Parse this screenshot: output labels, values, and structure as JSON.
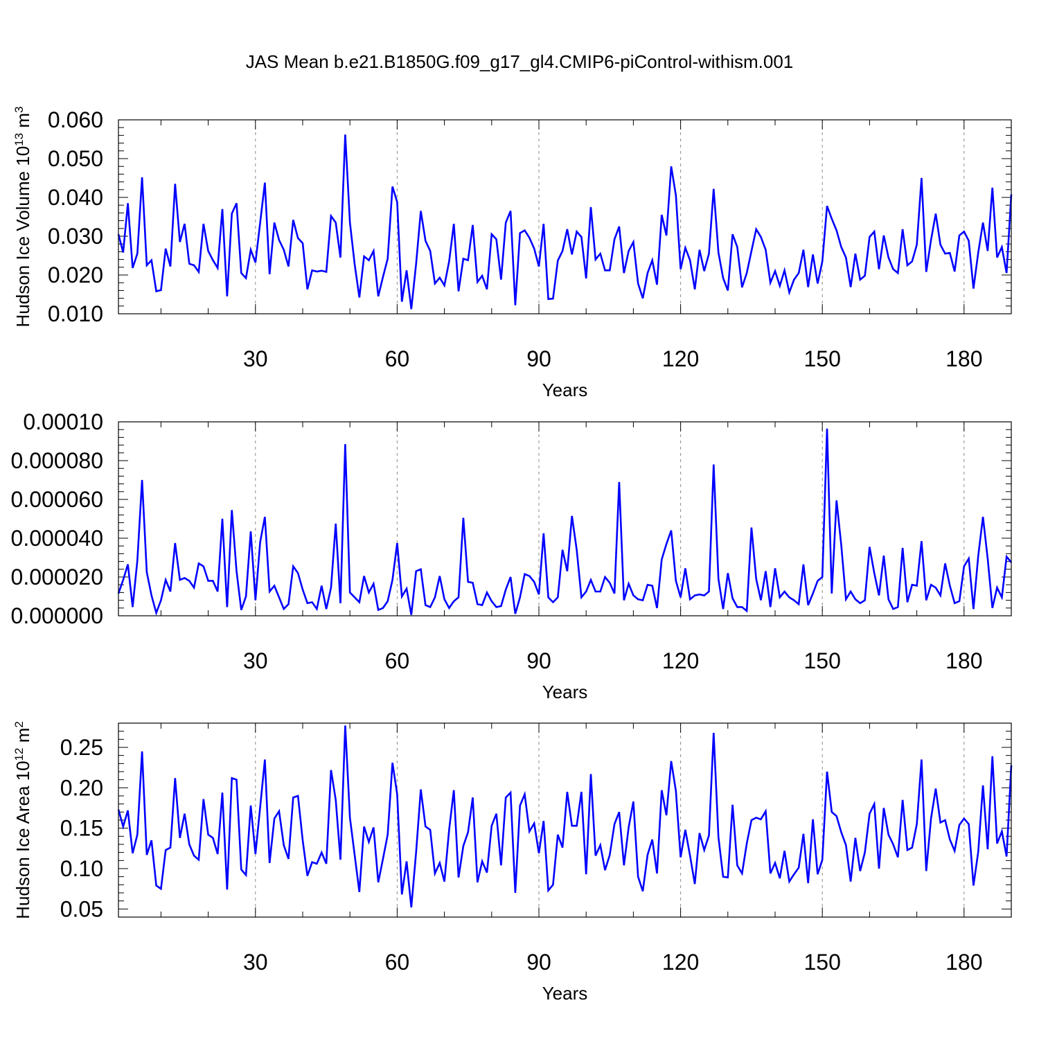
{
  "figure": {
    "title": "JAS Mean b.e21.B1850G.f09_g17_gl4.CMIP6-piControl-withism.001",
    "line_color": "#0000ff"
  },
  "chart_data": [
    {
      "type": "line",
      "xlabel": "Years",
      "ylabel": "Hudson Ice Volume 10",
      "ylabel_sup": "13",
      "ylabel_unit": " m",
      "ylabel_unit_sup": "3",
      "xlim": [
        1,
        190
      ],
      "ylim": [
        0.01,
        0.06
      ],
      "yticks": [
        0.01,
        0.02,
        0.03,
        0.04,
        0.05,
        0.06
      ],
      "ytick_labels": [
        "0.010",
        "0.020",
        "0.030",
        "0.040",
        "0.050",
        "0.060"
      ],
      "xticks": [
        30,
        60,
        90,
        120,
        150,
        180
      ],
      "xtick_labels": [
        "30",
        "60",
        "90",
        "120",
        "150",
        "180"
      ],
      "grid": "vertical-dashed",
      "series": [
        {
          "values": [
            0.0305,
            0.0258,
            0.0385,
            0.0218,
            0.0255,
            0.0452,
            0.0225,
            0.0238,
            0.0158,
            0.0161,
            0.0268,
            0.0222,
            0.0435,
            0.0285,
            0.0332,
            0.0229,
            0.0225,
            0.0208,
            0.0332,
            0.0262,
            0.0238,
            0.0218,
            0.037,
            0.0145,
            0.0358,
            0.0385,
            0.0205,
            0.0192,
            0.0265,
            0.0232,
            0.0335,
            0.0438,
            0.0202,
            0.0335,
            0.029,
            0.0265,
            0.0222,
            0.0342,
            0.0295,
            0.0282,
            0.0163,
            0.0212,
            0.0209,
            0.0211,
            0.0208,
            0.0352,
            0.0335,
            0.0245,
            0.0562,
            0.0335,
            0.0228,
            0.0142,
            0.0248,
            0.0238,
            0.0262,
            0.0145,
            0.0195,
            0.0242,
            0.0428,
            0.0388,
            0.0131,
            0.0212,
            0.0112,
            0.0228,
            0.0365,
            0.0288,
            0.0262,
            0.0178,
            0.0193,
            0.0173,
            0.0235,
            0.0332,
            0.0158,
            0.0242,
            0.0238,
            0.0329,
            0.0182,
            0.0198,
            0.0163,
            0.0305,
            0.0292,
            0.0188,
            0.0335,
            0.0365,
            0.0122,
            0.0308,
            0.0315,
            0.0296,
            0.0268,
            0.0222,
            0.0332,
            0.0138,
            0.0139,
            0.0237,
            0.0262,
            0.0318,
            0.0253,
            0.0312,
            0.0298,
            0.0191,
            0.0375,
            0.024,
            0.0255,
            0.0212,
            0.0212,
            0.0292,
            0.0325,
            0.0205,
            0.0262,
            0.0285,
            0.0178,
            0.014,
            0.0205,
            0.0238,
            0.0175,
            0.0355,
            0.0302,
            0.048,
            0.0405,
            0.0215,
            0.027,
            0.0238,
            0.0163,
            0.0265,
            0.021,
            0.0255,
            0.0422,
            0.0258,
            0.0192,
            0.016,
            0.0305,
            0.0272,
            0.0168,
            0.0205,
            0.0262,
            0.0318,
            0.0298,
            0.0265,
            0.018,
            0.021,
            0.0172,
            0.0212,
            0.0155,
            0.0188,
            0.0205,
            0.0265,
            0.0169,
            0.0253,
            0.0178,
            0.0235,
            0.0378,
            0.0345,
            0.0315,
            0.0272,
            0.0245,
            0.0169,
            0.0255,
            0.0188,
            0.0198,
            0.0298,
            0.0312,
            0.0215,
            0.0302,
            0.0245,
            0.0215,
            0.0205,
            0.0318,
            0.0225,
            0.0235,
            0.0278,
            0.045,
            0.0208,
            0.029,
            0.0358,
            0.0278,
            0.0255,
            0.0257,
            0.0209,
            0.0302,
            0.0312,
            0.0288,
            0.0165,
            0.0258,
            0.0335,
            0.0262,
            0.0425,
            0.0245,
            0.0272,
            0.0205,
            0.0408
          ]
        }
      ]
    },
    {
      "type": "line",
      "xlabel": "Years",
      "ylabel": "",
      "xlim": [
        1,
        190
      ],
      "ylim": [
        0,
        0.0001
      ],
      "yticks": [
        0,
        2e-05,
        4e-05,
        6e-05,
        8e-05,
        0.0001
      ],
      "ytick_labels": [
        "0.000000",
        "0.000020",
        "0.000040",
        "0.000060",
        "0.000080",
        "0.00010"
      ],
      "xticks": [
        30,
        60,
        90,
        120,
        150,
        180
      ],
      "xtick_labels": [
        "30",
        "60",
        "90",
        "120",
        "150",
        "180"
      ],
      "grid": "vertical-dashed",
      "series": [
        {
          "values": [
            1.15e-05,
            1.85e-05,
            2.65e-05,
            4.5e-06,
            2.85e-05,
            7e-05,
            2.25e-05,
            1.05e-05,
            1.5e-06,
            8e-06,
            1.85e-05,
            1.25e-05,
            3.75e-05,
            1.85e-05,
            1.95e-05,
            1.8e-05,
            1.45e-05,
            2.7e-05,
            2.55e-05,
            1.8e-05,
            1.8e-05,
            1.25e-05,
            5e-05,
            4.5e-06,
            5.45e-05,
            2.3e-05,
            3e-06,
            1e-05,
            4.35e-05,
            8e-06,
            3.8e-05,
            5.1e-05,
            1.25e-05,
            1.55e-05,
            9.5e-06,
            3.5e-06,
            6e-06,
            2.55e-05,
            2.2e-05,
            1.35e-05,
            6.5e-06,
            7e-06,
            3.5e-06,
            1.55e-05,
            3.5e-06,
            1.45e-05,
            4.75e-05,
            6.5e-06,
            8.85e-05,
            1.2e-05,
            9.5e-06,
            7e-06,
            2.05e-05,
            1.2e-05,
            1.65e-05,
            3e-06,
            4e-06,
            7.5e-06,
            1.85e-05,
            3.75e-05,
            1e-05,
            1.4e-05,
            5e-07,
            2.3e-05,
            2.4e-05,
            5.5e-06,
            4.5e-06,
            9.5e-06,
            2.05e-05,
            8.5e-06,
            4e-06,
            7.5e-06,
            9.5e-06,
            5.05e-05,
            1.75e-05,
            1.7e-05,
            6e-06,
            5.5e-06,
            1.2e-05,
            7.5e-06,
            4.5e-06,
            5e-06,
            1.35e-05,
            2e-05,
            1e-06,
            9.5e-06,
            2.15e-05,
            2.05e-05,
            1.75e-05,
            1.1e-05,
            4.25e-05,
            9.5e-06,
            7e-06,
            9.5e-06,
            3.4e-05,
            2.3e-05,
            5.15e-05,
            3.4e-05,
            9.5e-06,
            1.25e-05,
            1.85e-05,
            1.25e-05,
            1.25e-05,
            2e-05,
            1.7e-05,
            1.15e-05,
            6.9e-05,
            8e-06,
            1.65e-05,
            1.05e-05,
            8.5e-06,
            8e-06,
            1.6e-05,
            1.55e-05,
            4e-06,
            2.9e-05,
            3.7e-05,
            4.4e-05,
            1.8e-05,
            9.5e-06,
            2.45e-05,
            8.5e-06,
            1.05e-05,
            1.1e-05,
            1.05e-05,
            1.25e-05,
            7.8e-05,
            1.9e-05,
            3.5e-06,
            2.2e-05,
            9e-06,
            4.5e-06,
            4.5e-06,
            2.5e-06,
            4.55e-05,
            1.9e-05,
            8e-06,
            2.3e-05,
            4.5e-06,
            2.45e-05,
            9.5e-06,
            1.25e-05,
            9.5e-06,
            8e-06,
            6e-06,
            2.65e-05,
            5.5e-06,
            1.15e-05,
            1.8e-05,
            2e-05,
            9.65e-05,
            1.15e-05,
            5.95e-05,
            3.65e-05,
            8.5e-06,
            1.25e-05,
            8.5e-06,
            6.5e-06,
            8e-06,
            3.55e-05,
            2.2e-05,
            1.05e-05,
            3.1e-05,
            8.5e-06,
            3.5e-06,
            4.5e-06,
            3.5e-05,
            7e-06,
            1.6e-05,
            1.55e-05,
            3.85e-05,
            8e-06,
            1.6e-05,
            1.45e-05,
            1.05e-05,
            2.7e-05,
            1.55e-05,
            6.5e-06,
            7.5e-06,
            2.55e-05,
            2.95e-05,
            3.5e-06,
            3.1e-05,
            5.1e-05,
            2.95e-05,
            4e-06,
            1.45e-05,
            9.5e-06,
            3.05e-05,
            2.75e-05
          ]
        }
      ]
    },
    {
      "type": "line",
      "xlabel": "Years",
      "ylabel": "Hudson Ice Area 10",
      "ylabel_sup": "12",
      "ylabel_unit": " m",
      "ylabel_unit_sup": "2",
      "xlim": [
        1,
        190
      ],
      "ylim": [
        0.04,
        0.28
      ],
      "yticks": [
        0.05,
        0.1,
        0.15,
        0.2,
        0.25
      ],
      "ytick_labels": [
        "0.05",
        "0.10",
        "0.15",
        "0.20",
        "0.25"
      ],
      "xticks": [
        30,
        60,
        90,
        120,
        150,
        180
      ],
      "xtick_labels": [
        "30",
        "60",
        "90",
        "120",
        "150",
        "180"
      ],
      "grid": "vertical-dashed",
      "series": [
        {
          "values": [
            0.173,
            0.152,
            0.172,
            0.119,
            0.142,
            0.245,
            0.117,
            0.135,
            0.079,
            0.075,
            0.123,
            0.126,
            0.212,
            0.138,
            0.168,
            0.13,
            0.116,
            0.111,
            0.186,
            0.142,
            0.138,
            0.118,
            0.194,
            0.074,
            0.212,
            0.21,
            0.099,
            0.092,
            0.178,
            0.118,
            0.176,
            0.235,
            0.107,
            0.162,
            0.171,
            0.129,
            0.112,
            0.188,
            0.19,
            0.135,
            0.091,
            0.108,
            0.106,
            0.12,
            0.106,
            0.222,
            0.185,
            0.111,
            0.277,
            0.163,
            0.117,
            0.071,
            0.152,
            0.133,
            0.151,
            0.083,
            0.112,
            0.142,
            0.231,
            0.192,
            0.068,
            0.109,
            0.052,
            0.12,
            0.198,
            0.152,
            0.148,
            0.094,
            0.107,
            0.084,
            0.148,
            0.197,
            0.089,
            0.128,
            0.145,
            0.188,
            0.083,
            0.109,
            0.095,
            0.153,
            0.168,
            0.104,
            0.188,
            0.194,
            0.07,
            0.178,
            0.192,
            0.146,
            0.156,
            0.119,
            0.159,
            0.073,
            0.08,
            0.142,
            0.126,
            0.195,
            0.153,
            0.153,
            0.195,
            0.093,
            0.217,
            0.116,
            0.129,
            0.098,
            0.117,
            0.155,
            0.17,
            0.104,
            0.151,
            0.183,
            0.09,
            0.072,
            0.117,
            0.136,
            0.094,
            0.197,
            0.166,
            0.233,
            0.196,
            0.114,
            0.148,
            0.116,
            0.081,
            0.144,
            0.123,
            0.141,
            0.268,
            0.139,
            0.09,
            0.089,
            0.179,
            0.104,
            0.094,
            0.131,
            0.16,
            0.163,
            0.161,
            0.171,
            0.094,
            0.107,
            0.088,
            0.122,
            0.084,
            0.093,
            0.101,
            0.143,
            0.082,
            0.161,
            0.093,
            0.111,
            0.22,
            0.17,
            0.165,
            0.145,
            0.129,
            0.084,
            0.138,
            0.097,
            0.12,
            0.168,
            0.18,
            0.1,
            0.175,
            0.142,
            0.13,
            0.114,
            0.185,
            0.123,
            0.126,
            0.155,
            0.235,
            0.097,
            0.162,
            0.199,
            0.157,
            0.16,
            0.136,
            0.122,
            0.154,
            0.162,
            0.155,
            0.079,
            0.121,
            0.203,
            0.124,
            0.239,
            0.131,
            0.146,
            0.115,
            0.228
          ]
        }
      ]
    }
  ]
}
